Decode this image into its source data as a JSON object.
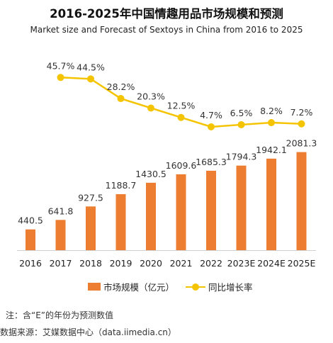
{
  "colors": {
    "bar": "#ED7D31",
    "line": "#F5C400",
    "axis": "#d0d0d0",
    "label": "#333333"
  },
  "legend": {
    "bar_label": "市场规模（亿元）",
    "line_label": "同比增长率"
  },
  "note": "注：含“E”的年份为预测数值",
  "source": "数据来源：艾媒数据中心（data.iimedia.cn）",
  "chart_data": {
    "type": "bar",
    "title": "2016-2025年中国情趣用品市场规模和预测",
    "subtitle": "Market size and Forecast of Sextoys in China from 2016 to 2025",
    "categories": [
      "2016",
      "2017",
      "2018",
      "2019",
      "2020",
      "2021",
      "2022",
      "2023E",
      "2024E",
      "2025E"
    ],
    "series": [
      {
        "name": "市场规模（亿元）",
        "type": "bar",
        "values": [
          440.5,
          641.8,
          927.5,
          1188.7,
          1430.5,
          1609.6,
          1685.3,
          1794.3,
          1942.1,
          2081.3
        ],
        "labels": [
          "440.5",
          "641.8",
          "927.5",
          "1188.7",
          "1430.5",
          "1609.6",
          "1685.3",
          "1794.3",
          "1942.1",
          "2081.3"
        ]
      },
      {
        "name": "同比增长率",
        "type": "line",
        "values": [
          null,
          45.7,
          44.5,
          28.2,
          20.3,
          12.5,
          4.7,
          6.5,
          8.2,
          7.2
        ],
        "labels": [
          "",
          "45.7%",
          "44.5%",
          "28.2%",
          "20.3%",
          "12.5%",
          "4.7%",
          "6.5%",
          "8.2%",
          "7.2%"
        ]
      }
    ],
    "grid": false,
    "legend_position": "bottom"
  }
}
